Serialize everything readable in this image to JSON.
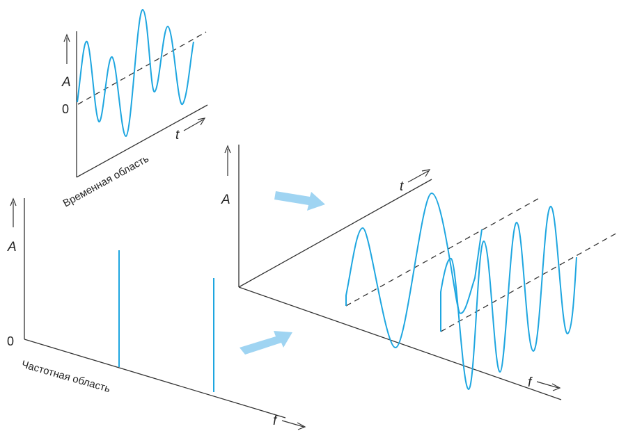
{
  "time_domain": {
    "label": "Временная область",
    "y_axis": "A",
    "zero": "0",
    "x_axis": "t"
  },
  "frequency_domain": {
    "label": "Частотная область",
    "y_axis": "A",
    "zero": "0",
    "x_axis": "f"
  },
  "combined_3d": {
    "y_axis": "A",
    "t_axis": "t",
    "f_axis": "f"
  },
  "colors": {
    "signal": "#1ea6e0",
    "arrow": "#9fd4f2",
    "axis": "#333333"
  }
}
